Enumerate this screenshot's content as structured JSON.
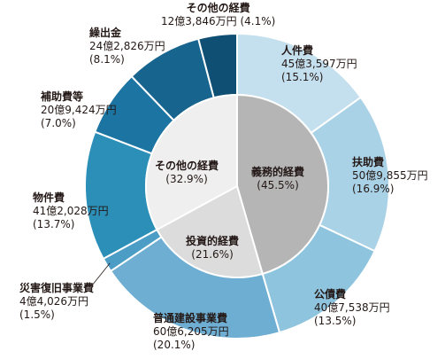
{
  "chart_data": {
    "type": "pie",
    "outer": [
      {
        "name": "人件費",
        "amount": "45億3,597万円",
        "percent": 15.1,
        "percent_label": "(15.1%)",
        "color": "#c4dfee"
      },
      {
        "name": "扶助費",
        "amount": "50億9,855万円",
        "percent": 16.9,
        "percent_label": "(16.9%)",
        "color": "#a9d2e6"
      },
      {
        "name": "公債費",
        "amount": "40億7,538万円",
        "percent": 13.5,
        "percent_label": "(13.5%)",
        "color": "#8ec4de"
      },
      {
        "name": "普通建設事業費",
        "amount": "60億6,205万円",
        "percent": 20.1,
        "percent_label": "(20.1%)",
        "color": "#6faed3"
      },
      {
        "name": "災害復旧事業費",
        "amount": "4億4,026万円",
        "percent": 1.5,
        "percent_label": "(1.5%)",
        "color": "#4b9dc6"
      },
      {
        "name": "物件費",
        "amount": "41億2,028万円",
        "percent": 13.7,
        "percent_label": "(13.7%)",
        "color": "#2c8fb8"
      },
      {
        "name": "補助費等",
        "amount": "20億9,424万円",
        "percent": 7.0,
        "percent_label": "(7.0%)",
        "color": "#1c74a2"
      },
      {
        "name": "繰出金",
        "amount": "24億2,826万円",
        "percent": 8.1,
        "percent_label": "(8.1%)",
        "color": "#17648f"
      },
      {
        "name": "その他の経費",
        "amount": "12億3,846万円",
        "percent": 4.1,
        "percent_label": "(4.1%)",
        "color": "#0f4f74"
      }
    ],
    "inner": [
      {
        "name": "義務的経費",
        "percent": 45.5,
        "percent_label": "(45.5%)",
        "color": "#b5b5b6"
      },
      {
        "name": "投資的経費",
        "percent": 21.6,
        "percent_label": "(21.6%)",
        "color": "#dcdcdd"
      },
      {
        "name": "その他の経費",
        "percent": 32.9,
        "percent_label": "(32.9%)",
        "color": "#efefef"
      }
    ]
  },
  "labels": {
    "top_other_line": "12億3,846万円 (4.1%)"
  }
}
